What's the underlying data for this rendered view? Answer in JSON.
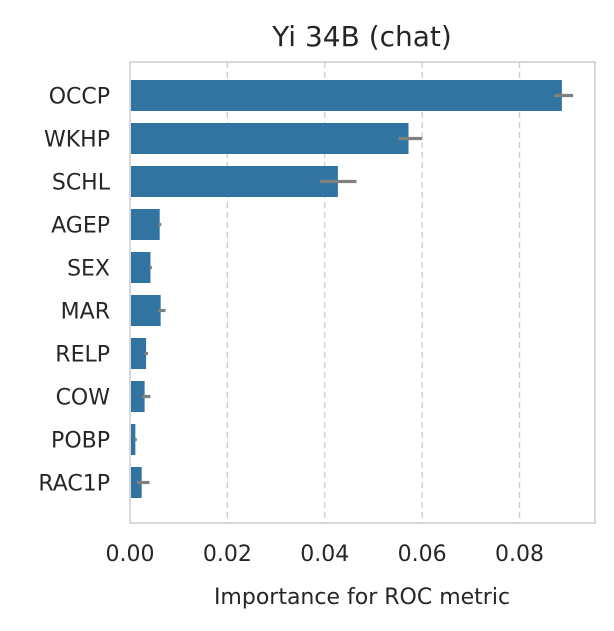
{
  "chart_data": {
    "type": "bar",
    "orientation": "horizontal",
    "title": "Yi 34B (chat)",
    "xlabel": "Importance for ROC metric",
    "ylabel": "",
    "xlim": [
      0,
      0.0955
    ],
    "xticks": [
      0.0,
      0.02,
      0.04,
      0.06,
      0.08
    ],
    "xtick_labels": [
      "0.00",
      "0.02",
      "0.04",
      "0.06",
      "0.08"
    ],
    "categories": [
      "OCCP",
      "WKHP",
      "SCHL",
      "AGEP",
      "SEX",
      "MAR",
      "RELP",
      "COW",
      "POBP",
      "RAC1P"
    ],
    "values": [
      0.0887,
      0.0572,
      0.0427,
      0.0061,
      0.0042,
      0.0063,
      0.0033,
      0.003,
      0.0011,
      0.0024
    ],
    "error_low": [
      0.0871,
      0.0552,
      0.039,
      0.0058,
      0.004,
      0.0058,
      0.003,
      0.0025,
      0.0009,
      0.0014
    ],
    "error_high": [
      0.091,
      0.06,
      0.0465,
      0.0064,
      0.0045,
      0.0073,
      0.0037,
      0.0042,
      0.0014,
      0.004
    ],
    "grid": "x-dashed",
    "colors": {
      "bar": "#3274a1",
      "error": "#808080",
      "grid": "#cccccc",
      "frame": "#cccccc"
    }
  }
}
